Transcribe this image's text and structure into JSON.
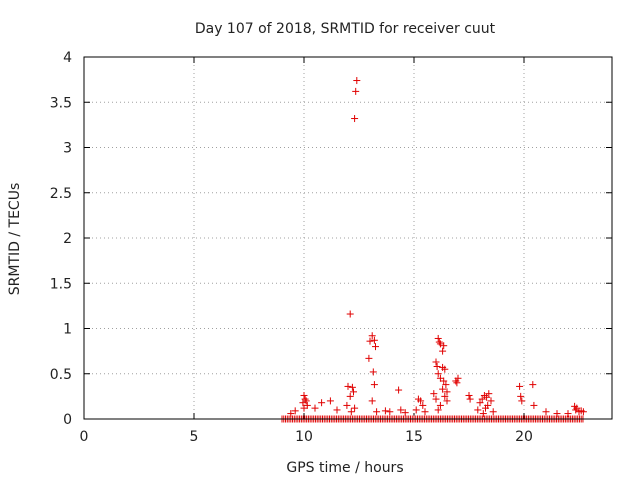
{
  "chart_data": {
    "type": "scatter",
    "title": "Day 107 of 2018, SRMTID for receiver cuut",
    "xlabel": "GPS time / hours",
    "ylabel": "SRMTID / TECUs",
    "xlim": [
      0,
      24
    ],
    "ylim": [
      0,
      4
    ],
    "xticks": [
      0,
      5,
      10,
      15,
      20
    ],
    "yticks": [
      0,
      0.5,
      1,
      1.5,
      2,
      2.5,
      3,
      3.5,
      4
    ],
    "ytick_labels": [
      "0",
      "0.5",
      "1",
      "1.5",
      "2",
      "2.5",
      "3",
      "3.5",
      "4"
    ],
    "grid": true,
    "marker": "+",
    "color": "#e00000",
    "baseline": {
      "x_start": 9.0,
      "x_end": 22.7,
      "step": 0.08,
      "y": 0.0
    },
    "series": [
      {
        "name": "SRMTID",
        "points": [
          [
            12.4,
            3.74
          ],
          [
            12.35,
            3.62
          ],
          [
            12.3,
            3.32
          ],
          [
            12.1,
            1.16
          ],
          [
            13.1,
            0.92
          ],
          [
            13.0,
            0.86
          ],
          [
            13.2,
            0.87
          ],
          [
            13.25,
            0.8
          ],
          [
            12.95,
            0.67
          ],
          [
            13.15,
            0.52
          ],
          [
            13.2,
            0.38
          ],
          [
            13.1,
            0.2
          ],
          [
            13.3,
            0.08
          ],
          [
            16.1,
            0.89
          ],
          [
            16.15,
            0.85
          ],
          [
            16.2,
            0.83
          ],
          [
            16.35,
            0.81
          ],
          [
            16.3,
            0.75
          ],
          [
            16.0,
            0.63
          ],
          [
            16.05,
            0.58
          ],
          [
            16.3,
            0.57
          ],
          [
            16.4,
            0.55
          ],
          [
            16.1,
            0.5
          ],
          [
            16.2,
            0.45
          ],
          [
            16.35,
            0.42
          ],
          [
            16.45,
            0.38
          ],
          [
            16.3,
            0.33
          ],
          [
            16.5,
            0.3
          ],
          [
            15.9,
            0.28
          ],
          [
            16.4,
            0.25
          ],
          [
            16.0,
            0.22
          ],
          [
            16.5,
            0.2
          ],
          [
            16.2,
            0.15
          ],
          [
            16.1,
            0.1
          ],
          [
            16.9,
            0.42
          ],
          [
            16.95,
            0.4
          ],
          [
            17.0,
            0.45
          ],
          [
            12.0,
            0.36
          ],
          [
            12.2,
            0.35
          ],
          [
            12.25,
            0.3
          ],
          [
            12.1,
            0.25
          ],
          [
            11.95,
            0.15
          ],
          [
            12.3,
            0.12
          ],
          [
            12.15,
            0.08
          ],
          [
            10.0,
            0.26
          ],
          [
            10.05,
            0.22
          ],
          [
            10.1,
            0.2
          ],
          [
            9.95,
            0.18
          ],
          [
            10.15,
            0.15
          ],
          [
            10.0,
            0.12
          ],
          [
            10.5,
            0.12
          ],
          [
            10.8,
            0.18
          ],
          [
            11.2,
            0.2
          ],
          [
            11.5,
            0.1
          ],
          [
            9.4,
            0.06
          ],
          [
            9.6,
            0.09
          ],
          [
            14.3,
            0.32
          ],
          [
            14.4,
            0.1
          ],
          [
            14.6,
            0.07
          ],
          [
            13.9,
            0.08
          ],
          [
            13.7,
            0.09
          ],
          [
            15.2,
            0.22
          ],
          [
            15.3,
            0.2
          ],
          [
            15.4,
            0.15
          ],
          [
            15.1,
            0.1
          ],
          [
            15.5,
            0.08
          ],
          [
            17.5,
            0.26
          ],
          [
            17.55,
            0.22
          ],
          [
            18.0,
            0.18
          ],
          [
            18.1,
            0.22
          ],
          [
            18.2,
            0.26
          ],
          [
            18.3,
            0.24
          ],
          [
            18.4,
            0.28
          ],
          [
            18.5,
            0.2
          ],
          [
            18.35,
            0.15
          ],
          [
            18.25,
            0.12
          ],
          [
            17.9,
            0.1
          ],
          [
            18.6,
            0.08
          ],
          [
            18.15,
            0.06
          ],
          [
            19.8,
            0.36
          ],
          [
            19.85,
            0.25
          ],
          [
            19.9,
            0.2
          ],
          [
            20.4,
            0.38
          ],
          [
            20.45,
            0.15
          ],
          [
            21.0,
            0.08
          ],
          [
            21.5,
            0.06
          ],
          [
            22.0,
            0.06
          ],
          [
            22.3,
            0.14
          ],
          [
            22.35,
            0.1
          ],
          [
            22.4,
            0.12
          ],
          [
            22.5,
            0.08
          ],
          [
            22.6,
            0.09
          ],
          [
            22.7,
            0.08
          ]
        ]
      }
    ]
  }
}
